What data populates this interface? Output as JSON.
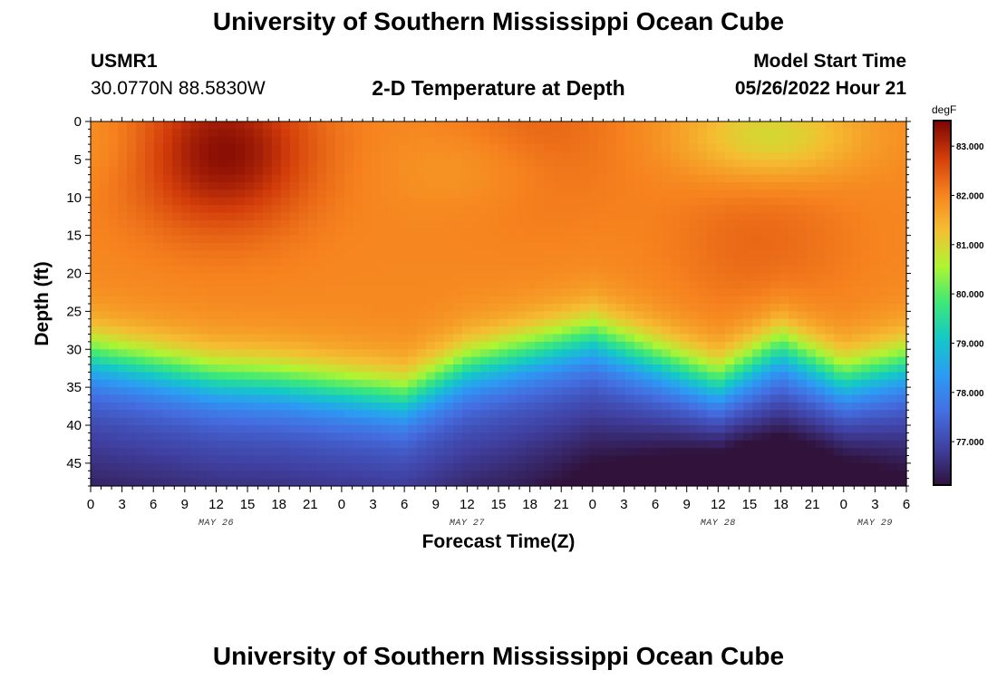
{
  "header": {
    "title": "University of Southern Mississippi Ocean Cube",
    "station_id": "USMR1",
    "station_coords": "30.0770N  88.5830W",
    "plot_title": "2-D Temperature at Depth",
    "model_start_label": "Model Start Time",
    "model_start_value": "05/26/2022 Hour 21"
  },
  "footer": {
    "title": "University of Southern Mississippi Ocean Cube"
  },
  "chart_data": {
    "type": "heatmap",
    "title": "2-D Temperature at Depth",
    "xlabel": "Forecast Time(Z)",
    "ylabel": "Depth (ft)",
    "x_ticks": [
      "0",
      "3",
      "6",
      "9",
      "12",
      "15",
      "18",
      "21",
      "0",
      "3",
      "6",
      "9",
      "12",
      "15",
      "18",
      "21",
      "0",
      "3",
      "6",
      "9",
      "12",
      "15",
      "18",
      "21",
      "0",
      "3",
      "6"
    ],
    "day_labels": [
      {
        "label": "MAY 26",
        "hour": 12
      },
      {
        "label": "MAY 27",
        "hour": 36
      },
      {
        "label": "MAY 28",
        "hour": 60
      },
      {
        "label": "MAY 29",
        "hour": 75
      }
    ],
    "xlim_hours": [
      0,
      78
    ],
    "y_ticks": [
      0,
      5,
      10,
      15,
      20,
      25,
      30,
      35,
      40,
      45
    ],
    "ylim_ft": [
      0,
      48
    ],
    "colorbar": {
      "unit": "degF",
      "min": 76.1,
      "max": 83.5,
      "ticks": [
        "83.000",
        "82.000",
        "81.000",
        "80.000",
        "79.000",
        "78.000",
        "77.000"
      ],
      "tick_values": [
        83,
        82,
        81,
        80,
        79,
        78,
        77
      ]
    },
    "thermocline": {
      "hours": [
        0,
        6,
        12,
        18,
        24,
        30,
        36,
        42,
        48,
        54,
        60,
        66,
        72,
        78
      ],
      "depth_ft": [
        30.5,
        32,
        33.5,
        34,
        35,
        36,
        32,
        30,
        28,
        31,
        34,
        29.5,
        33.5,
        31.5
      ]
    },
    "hot_spots": [
      {
        "hour": 12.5,
        "depth_ft": 4,
        "temp_f": 83.4
      },
      {
        "hour": 42.5,
        "depth_ft": 3,
        "temp_f": 82.4
      },
      {
        "hour": 64,
        "depth_ft": 16,
        "temp_f": 82.3
      }
    ],
    "cool_surface_spots": [
      {
        "hour": 65,
        "depth_ft": 2,
        "temp_f": 80.9
      },
      {
        "hour": 38,
        "depth_ft": 6,
        "temp_f": 81.6
      },
      {
        "hour": 1,
        "depth_ft": 3,
        "temp_f": 81.7
      }
    ],
    "bottom_min": {
      "hour": 64,
      "depth_ft": 47.5,
      "temp_f": 76.2
    }
  }
}
